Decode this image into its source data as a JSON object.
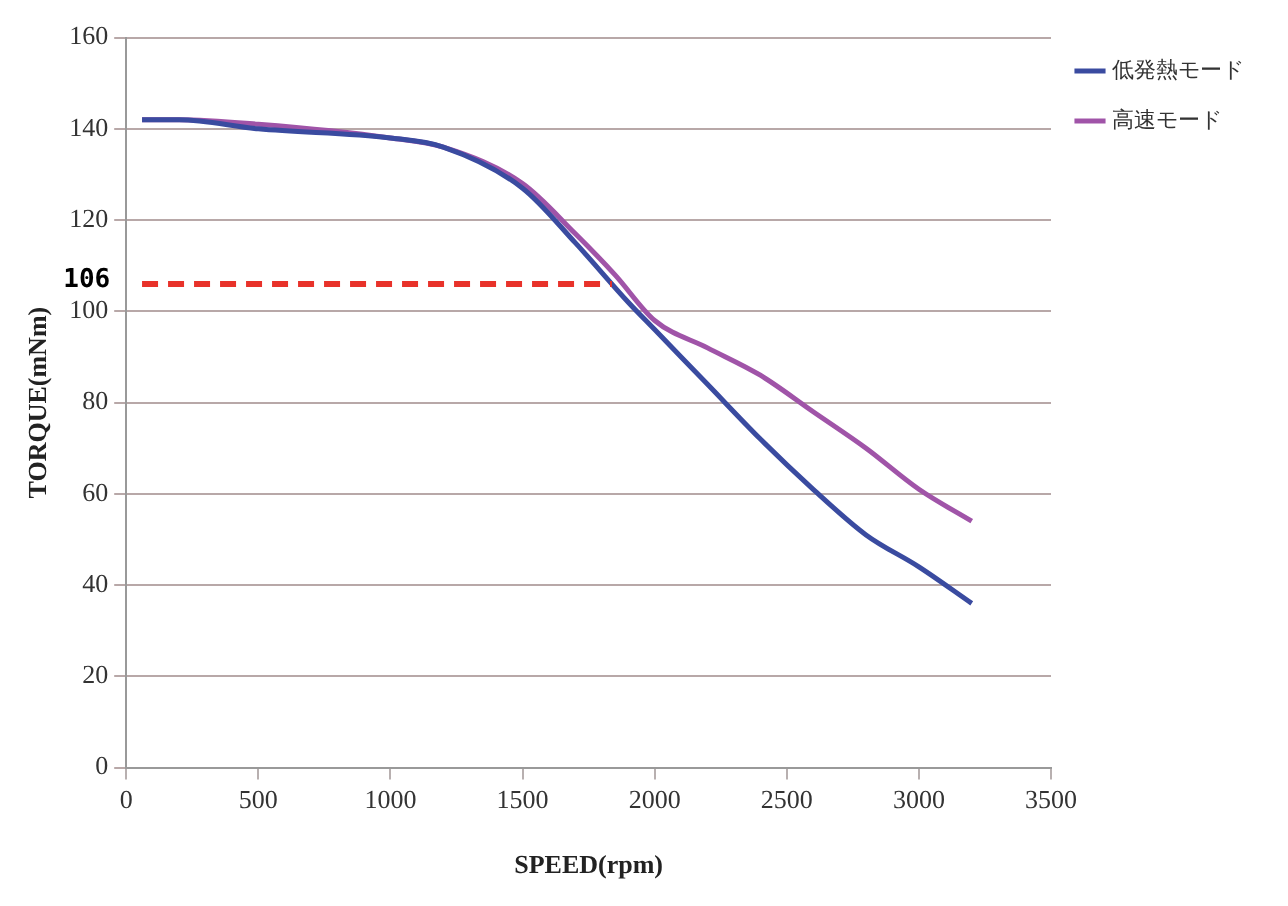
{
  "chart_data": {
    "type": "line",
    "xlabel": "SPEED(rpm)",
    "ylabel": "TORQUE(mNm)",
    "xlim": [
      0,
      3500
    ],
    "xticks": [
      0,
      500,
      1000,
      1500,
      2000,
      2500,
      3000,
      3500
    ],
    "ylim": [
      0,
      160
    ],
    "yticks": [
      0,
      20,
      40,
      60,
      80,
      100,
      120,
      140,
      160
    ],
    "grid": "y",
    "legend": "right",
    "marker": "none",
    "line_style": "solid",
    "series": [
      {
        "name": "低発熱モード",
        "color": "#3a4ba0",
        "x": [
          60,
          200,
          500,
          1000,
          1200,
          1500,
          1700,
          1900,
          2000,
          2200,
          2400,
          2600,
          2800,
          3000,
          3200
        ],
        "values": [
          142,
          142,
          140,
          138,
          136,
          127,
          115,
          102,
          96,
          84,
          72,
          61,
          51,
          44,
          36
        ]
      },
      {
        "name": "高速モード",
        "color": "#a054a8",
        "x": [
          60,
          200,
          500,
          1000,
          1200,
          1500,
          1700,
          1850,
          2000,
          2200,
          2400,
          2600,
          2800,
          3000,
          3200
        ],
        "values": [
          142,
          142,
          141,
          138,
          136,
          128,
          117,
          108,
          98,
          92,
          86,
          78,
          70,
          61,
          54
        ]
      }
    ],
    "ref_lines": [
      {
        "axis": "y",
        "value": 106,
        "label": "106",
        "color": "#e8322a",
        "line_style": "dashed"
      }
    ]
  }
}
